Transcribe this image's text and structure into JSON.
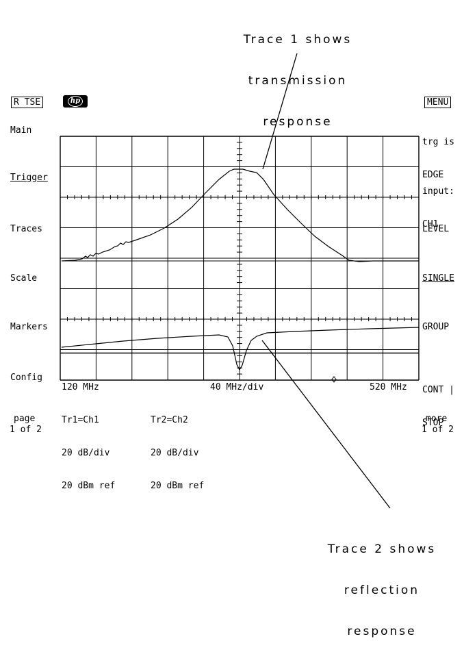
{
  "callouts": {
    "trace1": [
      "Trace 1 shows",
      "transmission",
      "response"
    ],
    "trace2": [
      "Trace 2 shows",
      "reflection",
      "response"
    ]
  },
  "header": {
    "mode_box": "R TSE",
    "logo_icon": "hp-logo-icon",
    "menu_box": "MENU"
  },
  "left_softkeys": {
    "main": "Main",
    "trigger": "Trigger",
    "traces": "Traces",
    "scale": "Scale",
    "markers": "Markers",
    "config": "Config",
    "page_label": "page",
    "page_value": "1 of 2"
  },
  "right_softkeys": {
    "trg_line1": "trg is",
    "trg_line2": "EDGE",
    "input_line1": "input:",
    "input_line2": "CH1",
    "level": "LEVEL",
    "single": "SINGLE",
    "group": "GROUP",
    "cont_line1": "CONT |",
    "cont_line2": "STOP",
    "more_label": "more",
    "more_value": "1 of 2"
  },
  "axis": {
    "start_freq": "120 MHz",
    "scale": "40 MHz/div",
    "stop_freq": "520 MHz"
  },
  "trace_info": {
    "tr1_name": "Tr1=Ch1",
    "tr1_scale": "20 dB/div",
    "tr1_ref": "20 dBm ref",
    "tr2_name": "Tr2=Ch2",
    "tr2_scale": "20 dB/div",
    "tr2_ref": "20 dBm ref"
  },
  "colors": {
    "foreground": "#000000",
    "background": "#ffffff"
  }
}
